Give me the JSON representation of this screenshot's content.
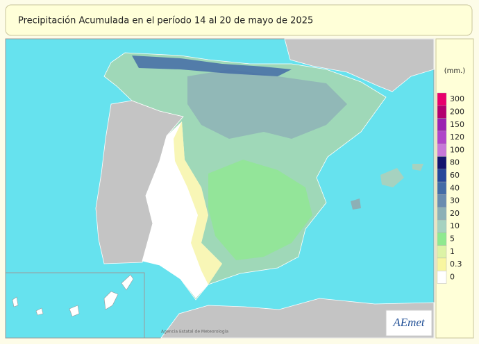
{
  "title": "Precipitación Acumulada en el período 14 al 20 de mayo de 2025",
  "legend": {
    "unit": "(mm.)",
    "items": [
      {
        "label": "300",
        "color": "#e8006c"
      },
      {
        "label": "200",
        "color": "#b3006e"
      },
      {
        "label": "150",
        "color": "#9b22b0"
      },
      {
        "label": "120",
        "color": "#b046c8"
      },
      {
        "label": "100",
        "color": "#c778d8"
      },
      {
        "label": "80",
        "color": "#14146e"
      },
      {
        "label": "60",
        "color": "#26479a"
      },
      {
        "label": "40",
        "color": "#446ca6"
      },
      {
        "label": "30",
        "color": "#6a8caf"
      },
      {
        "label": "20",
        "color": "#8db0b6"
      },
      {
        "label": "10",
        "color": "#a6d2c0"
      },
      {
        "label": "5",
        "color": "#8fe98f"
      },
      {
        "label": "1",
        "color": "#dcf3a6"
      },
      {
        "label": "0.3",
        "color": "#f8f6a0"
      },
      {
        "label": "0",
        "color": "#ffffff"
      }
    ]
  },
  "credit": "Agencia Estatal de Meteorología",
  "logo": "AEmet"
}
